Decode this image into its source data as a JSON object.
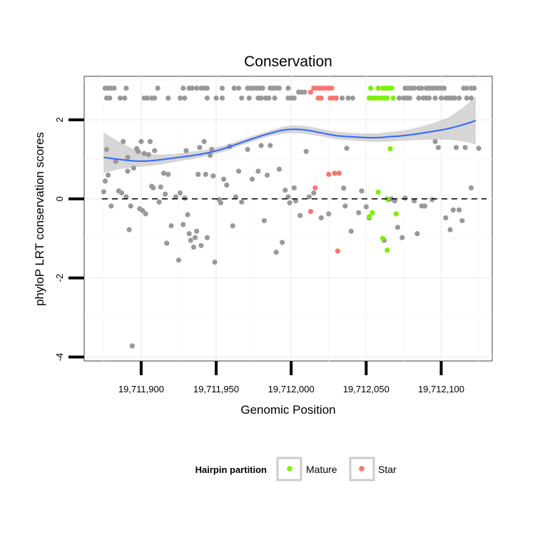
{
  "chart_data": {
    "type": "scatter",
    "title": "Conservation",
    "xlabel": "Genomic Position",
    "ylabel": "phyloP LRT conservation scores",
    "xlim": [
      19711862,
      19712134
    ],
    "ylim": [
      -4.1,
      3.1
    ],
    "x_ticks": [
      19711900,
      19711950,
      19712000,
      19712050,
      19712100
    ],
    "x_tick_labels": [
      "19,711,900",
      "19,711,950",
      "19,712,000",
      "19,712,050",
      "19,712,100"
    ],
    "y_ticks": [
      -4,
      -2,
      0,
      2
    ],
    "y_tick_labels": [
      "-4",
      "-2",
      "0",
      "2"
    ],
    "reference_line": {
      "y": 0,
      "style": "dashed"
    },
    "grid": true,
    "legend": {
      "title": "Hairpin partition",
      "position": "bottom",
      "entries": [
        {
          "label": "Mature",
          "color": "#7cf00a"
        },
        {
          "label": "Star",
          "color": "#f8766d"
        }
      ]
    },
    "colors": {
      "other": "#999999",
      "Mature": "#7cf00a",
      "Star": "#f8766d",
      "smooth": "#3366ff",
      "ribbon": "#d2d2d2"
    },
    "smooth": {
      "x": [
        19711875,
        19711885,
        19711895,
        19711905,
        19711915,
        19711925,
        19711935,
        19711945,
        19711955,
        19711965,
        19711975,
        19711985,
        19711995,
        19712002,
        19712010,
        19712020,
        19712030,
        19712040,
        19712050,
        19712058,
        19712065,
        19712075,
        19712085,
        19712095,
        19712105,
        19712115,
        19712123
      ],
      "y": [
        1.05,
        1.0,
        0.96,
        0.96,
        1.0,
        1.05,
        1.1,
        1.17,
        1.27,
        1.4,
        1.53,
        1.65,
        1.74,
        1.76,
        1.74,
        1.67,
        1.6,
        1.57,
        1.55,
        1.55,
        1.57,
        1.6,
        1.65,
        1.71,
        1.78,
        1.88,
        1.98
      ],
      "lower": [
        0.65,
        0.75,
        0.8,
        0.83,
        0.88,
        0.95,
        1.01,
        1.09,
        1.19,
        1.33,
        1.46,
        1.58,
        1.65,
        1.66,
        1.64,
        1.58,
        1.51,
        1.48,
        1.45,
        1.44,
        1.45,
        1.47,
        1.49,
        1.5,
        1.5,
        1.45,
        1.38
      ],
      "upper": [
        1.68,
        1.45,
        1.25,
        1.12,
        1.12,
        1.15,
        1.2,
        1.25,
        1.35,
        1.47,
        1.6,
        1.72,
        1.83,
        1.86,
        1.84,
        1.77,
        1.7,
        1.67,
        1.65,
        1.66,
        1.69,
        1.73,
        1.81,
        1.92,
        2.06,
        2.32,
        2.6
      ]
    },
    "series": [
      {
        "name": "Other",
        "points": [
          [
            19711876,
            2.8
          ],
          [
            19711878,
            2.8
          ],
          [
            19711880,
            2.8
          ],
          [
            19711882,
            2.8
          ],
          [
            19711890,
            2.8
          ],
          [
            19711911,
            2.8
          ],
          [
            19711928,
            2.8
          ],
          [
            19711932,
            2.8
          ],
          [
            19711934,
            2.8
          ],
          [
            19711937,
            2.8
          ],
          [
            19711940,
            2.8
          ],
          [
            19711942,
            2.8
          ],
          [
            19711944,
            2.8
          ],
          [
            19711954,
            2.8
          ],
          [
            19711962,
            2.8
          ],
          [
            19711965,
            2.8
          ],
          [
            19711971,
            2.8
          ],
          [
            19711973,
            2.8
          ],
          [
            19711975,
            2.8
          ],
          [
            19711977,
            2.8
          ],
          [
            19711979,
            2.8
          ],
          [
            19711981,
            2.8
          ],
          [
            19711986,
            2.8
          ],
          [
            19711988,
            2.8
          ],
          [
            19711990,
            2.8
          ],
          [
            19711992,
            2.8
          ],
          [
            19711998,
            2.8
          ],
          [
            19712005,
            2.7
          ],
          [
            19712007,
            2.7
          ],
          [
            19712009,
            2.7
          ],
          [
            19712076,
            2.8
          ],
          [
            19712078,
            2.8
          ],
          [
            19712080,
            2.8
          ],
          [
            19712082,
            2.8
          ],
          [
            19712085,
            2.8
          ],
          [
            19712087,
            2.8
          ],
          [
            19712090,
            2.8
          ],
          [
            19712092,
            2.8
          ],
          [
            19712094,
            2.8
          ],
          [
            19712096,
            2.8
          ],
          [
            19712098,
            2.8
          ],
          [
            19712100,
            2.8
          ],
          [
            19712102,
            2.8
          ],
          [
            19712115,
            2.8
          ],
          [
            19712117,
            2.8
          ],
          [
            19712120,
            2.8
          ],
          [
            19712122,
            2.8
          ],
          [
            19711877,
            2.55
          ],
          [
            19711879,
            2.55
          ],
          [
            19711886,
            2.55
          ],
          [
            19711889,
            2.55
          ],
          [
            19711902,
            2.55
          ],
          [
            19711904,
            2.55
          ],
          [
            19711907,
            2.55
          ],
          [
            19711909,
            2.55
          ],
          [
            19711918,
            2.55
          ],
          [
            19711926,
            2.55
          ],
          [
            19711929,
            2.55
          ],
          [
            19711944,
            2.55
          ],
          [
            19711950,
            2.55
          ],
          [
            19711954,
            2.55
          ],
          [
            19711967,
            2.55
          ],
          [
            19711972,
            2.55
          ],
          [
            19711978,
            2.55
          ],
          [
            19711980,
            2.55
          ],
          [
            19711983,
            2.55
          ],
          [
            19711985,
            2.55
          ],
          [
            19711989,
            2.55
          ],
          [
            19711998,
            2.55
          ],
          [
            19712000,
            2.55
          ],
          [
            19712002,
            2.55
          ],
          [
            19712034,
            2.55
          ],
          [
            19712038,
            2.55
          ],
          [
            19712041,
            2.55
          ],
          [
            19712072,
            2.55
          ],
          [
            19712075,
            2.55
          ],
          [
            19712077,
            2.55
          ],
          [
            19712079,
            2.55
          ],
          [
            19712085,
            2.55
          ],
          [
            19712088,
            2.55
          ],
          [
            19712090,
            2.55
          ],
          [
            19712092,
            2.55
          ],
          [
            19712096,
            2.55
          ],
          [
            19712100,
            2.55
          ],
          [
            19712103,
            2.55
          ],
          [
            19712105,
            2.55
          ],
          [
            19712107,
            2.55
          ],
          [
            19712109,
            2.55
          ],
          [
            19712112,
            2.55
          ],
          [
            19712117,
            2.55
          ],
          [
            19712120,
            2.55
          ],
          [
            19711875,
            0.18
          ],
          [
            19711876,
            0.45
          ],
          [
            19711877,
            1.25
          ],
          [
            19711878,
            0.6
          ],
          [
            19711880,
            -0.18
          ],
          [
            19711883,
            0.95
          ],
          [
            19711885,
            0.2
          ],
          [
            19711887,
            0.15
          ],
          [
            19711888,
            1.45
          ],
          [
            19711890,
            0.05
          ],
          [
            19711891,
            0.7
          ],
          [
            19711891,
            1.05
          ],
          [
            19711892,
            -0.78
          ],
          [
            19711893,
            -0.18
          ],
          [
            19711895,
            0.78
          ],
          [
            19711897,
            1.27
          ],
          [
            19711898,
            1.2
          ],
          [
            19711899,
            -0.25
          ],
          [
            19711900,
            1.45
          ],
          [
            19711901,
            -0.3
          ],
          [
            19711902,
            1.15
          ],
          [
            19711903,
            -0.38
          ],
          [
            19711905,
            1.12
          ],
          [
            19711906,
            1.45
          ],
          [
            19711907,
            0.32
          ],
          [
            19711908,
            0.28
          ],
          [
            19711909,
            1.22
          ],
          [
            19711912,
            -0.08
          ],
          [
            19711913,
            0.3
          ],
          [
            19711915,
            0.65
          ],
          [
            19711916,
            0.12
          ],
          [
            19711917,
            -1.12
          ],
          [
            19711918,
            0.62
          ],
          [
            19711920,
            -0.68
          ],
          [
            19711923,
            0.05
          ],
          [
            19711925,
            -1.55
          ],
          [
            19711926,
            0.15
          ],
          [
            19711928,
            -0.65
          ],
          [
            19711929,
            0.02
          ],
          [
            19711930,
            1.22
          ],
          [
            19711931,
            -0.4
          ],
          [
            19711932,
            -0.88
          ],
          [
            19711933,
            -1.05
          ],
          [
            19711935,
            -1.22
          ],
          [
            19711936,
            -0.98
          ],
          [
            19711937,
            -0.82
          ],
          [
            19711938,
            0.62
          ],
          [
            19711939,
            1.3
          ],
          [
            19711940,
            -1.18
          ],
          [
            19711942,
            1.45
          ],
          [
            19711943,
            0.62
          ],
          [
            19711944,
            -0.98
          ],
          [
            19711946,
            1.1
          ],
          [
            19711947,
            1.25
          ],
          [
            19711948,
            0.58
          ],
          [
            19711949,
            -1.6
          ],
          [
            19711952,
            -0.02
          ],
          [
            19711953,
            -0.1
          ],
          [
            19711955,
            0.5
          ],
          [
            19711957,
            0.35
          ],
          [
            19711959,
            1.32
          ],
          [
            19711961,
            -0.68
          ],
          [
            19711963,
            0.05
          ],
          [
            19711965,
            0.7
          ],
          [
            19711967,
            -0.08
          ],
          [
            19711971,
            1.25
          ],
          [
            19711974,
            0.5
          ],
          [
            19711978,
            0.7
          ],
          [
            19711980,
            1.35
          ],
          [
            19711982,
            -0.55
          ],
          [
            19711984,
            0.6
          ],
          [
            19711986,
            1.35
          ],
          [
            19711990,
            -1.35
          ],
          [
            19711992,
            0.75
          ],
          [
            19711994,
            -1.1
          ],
          [
            19711996,
            0.22
          ],
          [
            19711998,
            0.05
          ],
          [
            19711999,
            -0.1
          ],
          [
            19712002,
            0.28
          ],
          [
            19712003,
            -0.05
          ],
          [
            19712006,
            -0.42
          ],
          [
            19712010,
            1.2
          ],
          [
            19712012,
            0.05
          ],
          [
            19712015,
            0.15
          ],
          [
            19712020,
            -0.48
          ],
          [
            19712025,
            -0.38
          ],
          [
            19712035,
            0.27
          ],
          [
            19712036,
            -0.18
          ],
          [
            19712037,
            1.28
          ],
          [
            19712040,
            -0.82
          ],
          [
            19712045,
            -0.35
          ],
          [
            19712047,
            0.2
          ],
          [
            19712050,
            -0.2
          ],
          [
            19712052,
            -0.48
          ],
          [
            19712062,
            -1.05
          ],
          [
            19712065,
            -0.02
          ],
          [
            19712067,
            0.0
          ],
          [
            19712069,
            -0.05
          ],
          [
            19712071,
            -0.72
          ],
          [
            19712074,
            -0.98
          ],
          [
            19712076,
            0.02
          ],
          [
            19712082,
            -0.05
          ],
          [
            19712084,
            -0.88
          ],
          [
            19712087,
            -0.18
          ],
          [
            19712089,
            -0.18
          ],
          [
            19712094,
            -0.02
          ],
          [
            19712096,
            1.45
          ],
          [
            19712098,
            1.3
          ],
          [
            19712103,
            -0.48
          ],
          [
            19712106,
            -0.78
          ],
          [
            19712108,
            -0.28
          ],
          [
            19712110,
            1.3
          ],
          [
            19712112,
            -0.28
          ],
          [
            19712114,
            -0.55
          ],
          [
            19712116,
            1.3
          ],
          [
            19712120,
            0.28
          ],
          [
            19712125,
            1.28
          ],
          [
            19711894,
            -3.72
          ]
        ]
      },
      {
        "name": "Mature",
        "points": [
          [
            19712053,
            2.8
          ],
          [
            19712058,
            2.8
          ],
          [
            19712061,
            2.8
          ],
          [
            19712063,
            2.8
          ],
          [
            19712065,
            2.8
          ],
          [
            19712067,
            2.8
          ],
          [
            19712052,
            2.55
          ],
          [
            19712054,
            2.55
          ],
          [
            19712056,
            2.55
          ],
          [
            19712058,
            2.55
          ],
          [
            19712060,
            2.55
          ],
          [
            19712062,
            2.55
          ],
          [
            19712064,
            2.55
          ],
          [
            19712068,
            2.55
          ],
          [
            19712066,
            1.27
          ],
          [
            19712058,
            0.17
          ],
          [
            19712054,
            -0.35
          ],
          [
            19712070,
            -0.38
          ],
          [
            19712052,
            -0.45
          ],
          [
            19712064,
            0.0
          ],
          [
            19712061,
            -1.0
          ],
          [
            19712064,
            -1.3
          ]
        ]
      },
      {
        "name": "Star",
        "points": [
          [
            19712015,
            2.8
          ],
          [
            19712017,
            2.8
          ],
          [
            19712019,
            2.8
          ],
          [
            19712021,
            2.8
          ],
          [
            19712023,
            2.8
          ],
          [
            19712025,
            2.8
          ],
          [
            19712027,
            2.8
          ],
          [
            19712013,
            2.7
          ],
          [
            19712018,
            2.55
          ],
          [
            19712020,
            2.55
          ],
          [
            19712026,
            2.55
          ],
          [
            19712028,
            2.55
          ],
          [
            19712030,
            2.55
          ],
          [
            19712029,
            0.65
          ],
          [
            19712032,
            0.65
          ],
          [
            19712025,
            0.62
          ],
          [
            19712016,
            0.28
          ],
          [
            19712013,
            -0.32
          ],
          [
            19712031,
            -1.32
          ]
        ]
      }
    ]
  }
}
